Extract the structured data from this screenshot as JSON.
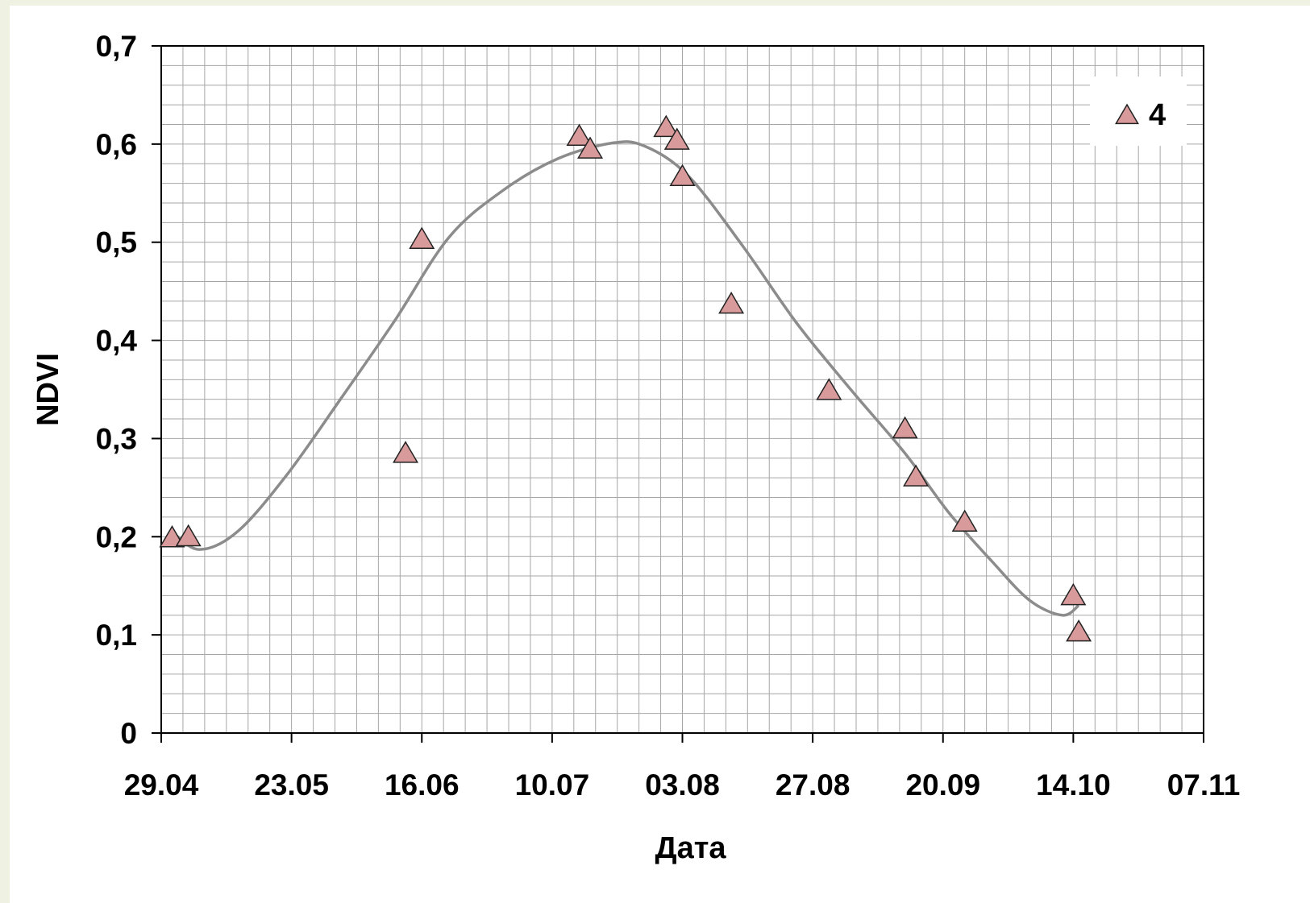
{
  "chart_data": {
    "type": "scatter",
    "title": "",
    "xlabel": "Дата",
    "ylabel": "NDVI",
    "x_tick_labels": [
      "29.04",
      "23.05",
      "16.06",
      "10.07",
      "03.08",
      "27.08",
      "20.09",
      "14.10",
      "07.11"
    ],
    "y_tick_labels": [
      "0",
      "0,1",
      "0,2",
      "0,3",
      "0,4",
      "0,5",
      "0,6",
      "0,7"
    ],
    "y_ticks": [
      0,
      0.1,
      0.2,
      0.3,
      0.4,
      0.5,
      0.6,
      0.7
    ],
    "xlim": [
      "29.04",
      "07.11"
    ],
    "ylim": [
      0,
      0.7
    ],
    "grid": true,
    "legend_position": "top-right",
    "series": [
      {
        "name": "4",
        "marker": "triangle",
        "color": "#d89a9a",
        "edge_color": "#222222",
        "points": [
          {
            "x": "01.05",
            "y": 0.199
          },
          {
            "x": "04.05",
            "y": 0.2
          },
          {
            "x": "13.06",
            "y": 0.285
          },
          {
            "x": "16.06",
            "y": 0.503
          },
          {
            "x": "15.07",
            "y": 0.608
          },
          {
            "x": "17.07",
            "y": 0.595
          },
          {
            "x": "31.07",
            "y": 0.617
          },
          {
            "x": "02.08",
            "y": 0.604
          },
          {
            "x": "03.08",
            "y": 0.567
          },
          {
            "x": "12.08",
            "y": 0.437
          },
          {
            "x": "30.08",
            "y": 0.349
          },
          {
            "x": "13.09",
            "y": 0.31
          },
          {
            "x": "15.09",
            "y": 0.261
          },
          {
            "x": "24.09",
            "y": 0.215
          },
          {
            "x": "14.10",
            "y": 0.14
          },
          {
            "x": "15.10",
            "y": 0.103
          }
        ]
      }
    ],
    "trendline": {
      "type": "polynomial",
      "color": "#8c8c8c",
      "points": [
        {
          "x": "01.05",
          "y": 0.205
        },
        {
          "x": "06.05",
          "y": 0.187
        },
        {
          "x": "13.05",
          "y": 0.205
        },
        {
          "x": "22.05",
          "y": 0.262
        },
        {
          "x": "01.06",
          "y": 0.34
        },
        {
          "x": "11.06",
          "y": 0.42
        },
        {
          "x": "21.06",
          "y": 0.505
        },
        {
          "x": "01.07",
          "y": 0.553
        },
        {
          "x": "11.07",
          "y": 0.585
        },
        {
          "x": "21.07",
          "y": 0.601
        },
        {
          "x": "27.07",
          "y": 0.598
        },
        {
          "x": "04.08",
          "y": 0.568
        },
        {
          "x": "14.08",
          "y": 0.497
        },
        {
          "x": "24.08",
          "y": 0.418
        },
        {
          "x": "03.09",
          "y": 0.35
        },
        {
          "x": "13.09",
          "y": 0.285
        },
        {
          "x": "21.09",
          "y": 0.225
        },
        {
          "x": "29.09",
          "y": 0.175
        },
        {
          "x": "06.10",
          "y": 0.135
        },
        {
          "x": "12.10",
          "y": 0.12
        },
        {
          "x": "15.10",
          "y": 0.13
        }
      ]
    }
  },
  "colors": {
    "page_background": "#eff1e3",
    "plot_background": "#ffffff",
    "grid": "#a6a6a6",
    "axis": "#000000"
  }
}
